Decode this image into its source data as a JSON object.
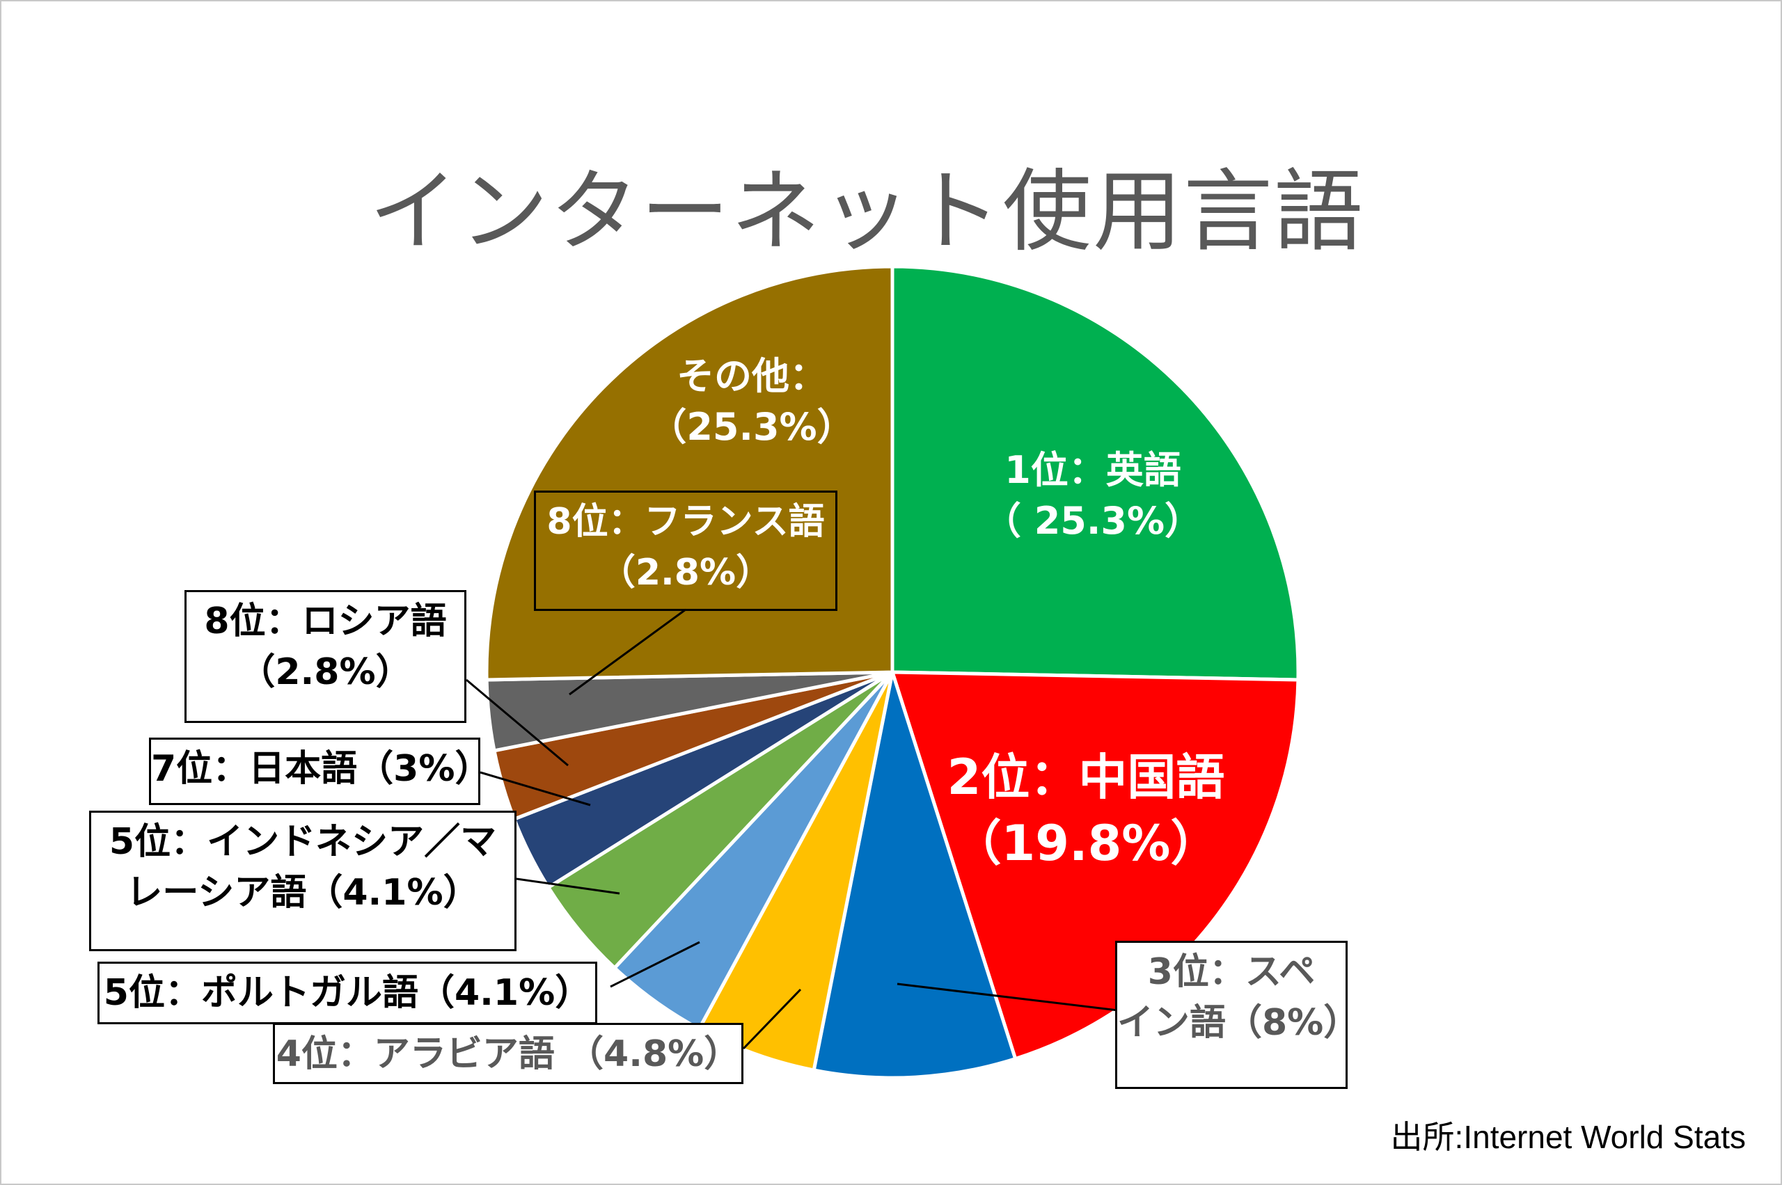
{
  "title": "インターネット使用言語",
  "source": "出所:Internet World Stats",
  "chart_data": {
    "type": "pie",
    "title": "インターネット使用言語",
    "start": "12 o'clock, clockwise",
    "slices": [
      {
        "name": "英語",
        "value": 25.3,
        "color": "#00b050"
      },
      {
        "name": "中国語",
        "value": 19.8,
        "color": "#ff0000"
      },
      {
        "name": "スペイン語",
        "value": 8.0,
        "color": "#0070c0"
      },
      {
        "name": "アラビア語",
        "value": 4.8,
        "color": "#ffc000"
      },
      {
        "name": "ポルトガル語",
        "value": 4.1,
        "color": "#5b9bd5"
      },
      {
        "name": "インドネシア/マレーシア語",
        "value": 4.1,
        "color": "#70ad47"
      },
      {
        "name": "日本語",
        "value": 3.0,
        "color": "#264478"
      },
      {
        "name": "ロシア語",
        "value": 2.8,
        "color": "#9e480e"
      },
      {
        "name": "フランス語",
        "value": 2.8,
        "color": "#636363"
      },
      {
        "name": "その他",
        "value": 25.3,
        "color": "#967000"
      }
    ]
  },
  "labels": {
    "english_l1": "1位：英語",
    "english_l2": "（ 25.3%）",
    "chinese_l1": "2位：中国語",
    "chinese_l2": "（19.8%）",
    "other_l1": "その他：",
    "other_l2": "（25.3%）",
    "french_l1": "8位：フランス語",
    "french_l2": "（2.8%）",
    "russian_l1": "8位：ロシア語",
    "russian_l2": "（2.8%）",
    "japanese": "7位：日本語（3%）",
    "indonesian_l1": "5位：インドネシア／マ",
    "indonesian_l2": "レーシア語（4.1%）",
    "portuguese": "5位：ポルトガル語（4.1%）",
    "arabic": "4位：アラビア語 （4.8%）",
    "spanish_l1": "3位：スペ",
    "spanish_l2": "イン語（8%）"
  }
}
